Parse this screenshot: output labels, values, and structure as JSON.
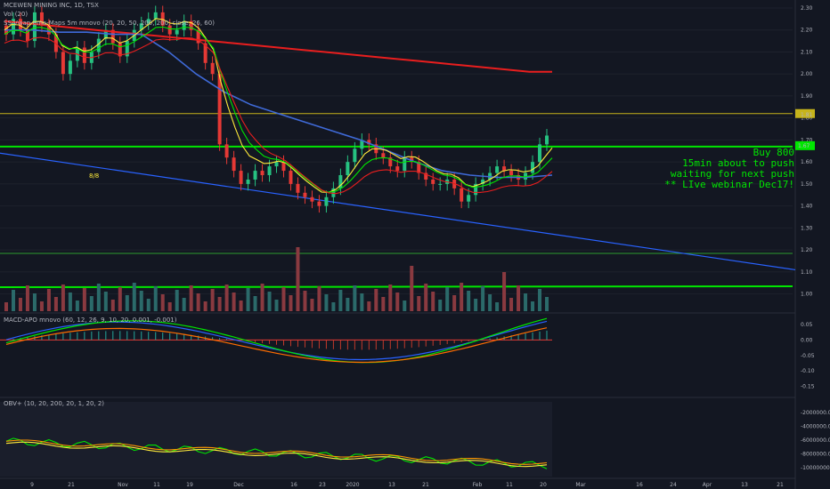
{
  "header": {
    "symbol_line": "MCEWEN MINING INC, 1D, TSX",
    "volume_label": "Vol (20)",
    "ma_line": "SS-Vwap-ema-Maps 5m mnovo (20, 20, 50, 200, 200, close, 26, 60)"
  },
  "panes": {
    "macd_label": "MACD-APO mnovo (60, 12, 26, 9, 10, 20, 0.001, -0.001)",
    "obv_label": "OBV+ (10, 20, 200, 20, 1, 20, 2)"
  },
  "annotation": {
    "lines": [
      "Buy 800",
      "15min about to push",
      "waiting for next push",
      "** LIve webinar Dec17!"
    ],
    "mark_text": "8/8"
  },
  "price_badges": {
    "top": "1.81",
    "mid": "1.67",
    "mid2": "1.66"
  },
  "colors": {
    "bg": "#131722",
    "up": "#26a69a",
    "down": "#ef5350",
    "green": "#00e600",
    "ema_red": "#e91e1e",
    "ema_blue": "#2962ff",
    "yellow": "#ffeb3b"
  },
  "chart_data": [
    {
      "type": "candlestick",
      "title": "MCEWEN MINING INC, 1D, TSX",
      "ylim": [
        0.95,
        2.32
      ],
      "y_ticks": [
        "2.30",
        "2.20",
        "2.10",
        "2.00",
        "1.90",
        "1.80",
        "1.70",
        "1.60",
        "1.50",
        "1.40",
        "1.30",
        "1.20",
        "1.10",
        "1.00"
      ],
      "x_ticks": [
        "9",
        "21",
        "Nov",
        "11",
        "19",
        "Dec",
        "16",
        "23",
        "2020",
        "13",
        "21",
        "Feb",
        "11",
        "20",
        "Mar",
        "16",
        "24",
        "Apr",
        "13",
        "21"
      ],
      "close_start": 2.22,
      "closes": [
        2.18,
        2.25,
        2.2,
        2.15,
        2.28,
        2.22,
        2.18,
        2.1,
        2.0,
        2.06,
        2.12,
        2.05,
        2.1,
        2.16,
        2.2,
        2.14,
        2.08,
        2.15,
        2.2,
        2.23,
        2.25,
        2.28,
        2.22,
        2.18,
        2.2,
        2.24,
        2.2,
        2.14,
        2.05,
        2.0,
        1.68,
        1.62,
        1.56,
        1.5,
        1.52,
        1.56,
        1.54,
        1.58,
        1.6,
        1.56,
        1.5,
        1.46,
        1.44,
        1.42,
        1.4,
        1.44,
        1.48,
        1.54,
        1.6,
        1.66,
        1.7,
        1.68,
        1.64,
        1.62,
        1.58,
        1.56,
        1.62,
        1.6,
        1.55,
        1.52,
        1.5,
        1.5,
        1.52,
        1.48,
        1.42,
        1.45,
        1.5,
        1.52,
        1.55,
        1.58,
        1.56,
        1.54,
        1.52,
        1.55,
        1.6,
        1.68,
        1.72
      ],
      "levels": {
        "resistance": 1.82,
        "green_line": 1.67
      },
      "series": [
        {
          "name": "EMA 200",
          "values": [
            2.24,
            2.23,
            2.22,
            2.21,
            2.2,
            2.19,
            2.18,
            2.17,
            2.16,
            2.15,
            2.14,
            2.13,
            2.12,
            2.11,
            2.1,
            2.09,
            2.08,
            2.07,
            2.06,
            2.05,
            2.04,
            2.03,
            2.02,
            2.01,
            2.01
          ]
        },
        {
          "name": "EMA 50",
          "values": [
            2.2,
            2.2,
            2.19,
            2.19,
            2.18,
            2.18,
            2.1,
            2.0,
            1.92,
            1.86,
            1.82,
            1.78,
            1.74,
            1.7,
            1.65,
            1.6,
            1.56,
            1.54,
            1.53,
            1.53,
            1.54
          ]
        }
      ]
    },
    {
      "type": "bar",
      "title": "Vol (20)",
      "note": "volume histogram"
    },
    {
      "type": "line",
      "title": "MACD-APO mnovo (60, 12, 26, 9, 10, 20, 0.001, -0.001)",
      "ylim": [
        -0.18,
        0.07
      ],
      "y_ticks": [
        "0.05",
        "0.00",
        "-0.05",
        "-0.10",
        "-0.15"
      ]
    },
    {
      "type": "line",
      "title": "OBV+ (10, 20, 200, 20, 1, 20, 2)",
      "ylim": [
        -10800000,
        -1000000
      ],
      "y_ticks": [
        "-2000000.00",
        "-4000000.00",
        "-6000000.00",
        "-8000000.00",
        "-10000000.00"
      ]
    }
  ]
}
